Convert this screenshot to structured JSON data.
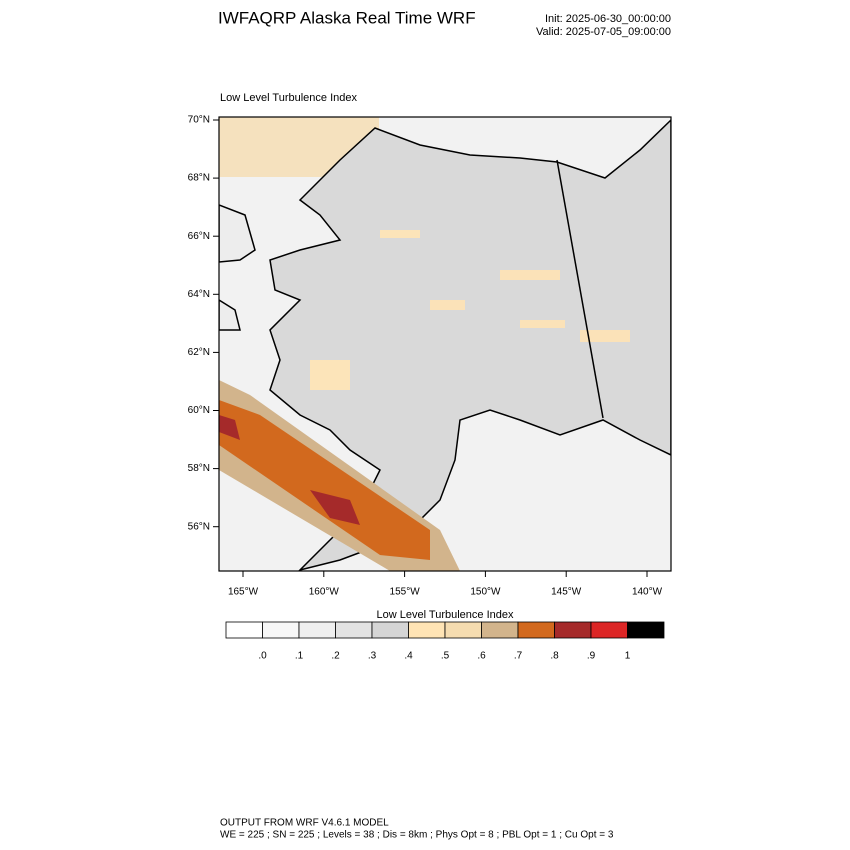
{
  "header": {
    "title": "IWFAQRP Alaska Real Time WRF",
    "init": "Init: 2025-06-30_00:00:00",
    "valid": "Valid: 2025-07-05_09:00:00"
  },
  "map": {
    "title": "Low Level Turbulence Index",
    "lat_labels": [
      "70°N",
      "68°N",
      "66°N",
      "64°N",
      "62°N",
      "60°N",
      "58°N",
      "56°N"
    ],
    "lon_labels": [
      "165°W",
      "160°W",
      "155°W",
      "150°W",
      "145°W",
      "140°W"
    ]
  },
  "colorbar": {
    "title": "Low Level Turbulence Index",
    "colors": [
      "#ffffff",
      "#f7f7f7",
      "#efefef",
      "#e3e3e3",
      "#d5d5d5",
      "#ffe4b5",
      "#f5dcb0",
      "#d2b48c",
      "#d2691e",
      "#a52a2a",
      "#dc2626",
      "#000000"
    ],
    "labels": [
      ".0",
      ".1",
      ".2",
      ".3",
      ".4",
      ".5",
      ".6",
      ".7",
      ".8",
      ".9",
      "1"
    ]
  },
  "footer": {
    "line1": "OUTPUT FROM WRF V4.6.1 MODEL",
    "line2": "WE = 225 ; SN = 225 ; Levels = 38 ; Dis = 8km ; Phys Opt = 8 ; PBL Opt = 1 ; Cu Opt = 3"
  }
}
